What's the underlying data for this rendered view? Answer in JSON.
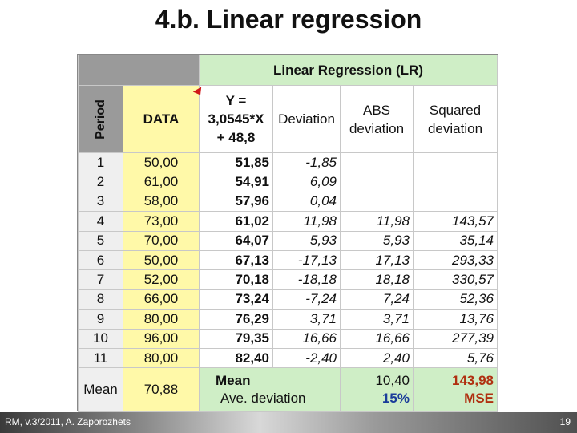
{
  "slide": {
    "title": "4.b. Linear regression",
    "footer_left": "RM, v.3/2011, A. Zaporozhets",
    "page_number": "19"
  },
  "table": {
    "section_header": "Linear Regression (LR)",
    "headers": {
      "period": "Period",
      "data": "DATA",
      "forecast_line1": "Y =",
      "forecast_line2": "3,0545*X",
      "forecast_line3": "+ 48,8",
      "deviation": "Deviation",
      "abs_line1": "ABS",
      "abs_line2": "deviation",
      "sq_line1": "Squared",
      "sq_line2": "deviation"
    },
    "rows": [
      {
        "period": "1",
        "data": "50,00",
        "forecast": "51,85",
        "deviation": "-1,85",
        "abs": "",
        "squared": ""
      },
      {
        "period": "2",
        "data": "61,00",
        "forecast": "54,91",
        "deviation": "6,09",
        "abs": "",
        "squared": ""
      },
      {
        "period": "3",
        "data": "58,00",
        "forecast": "57,96",
        "deviation": "0,04",
        "abs": "",
        "squared": ""
      },
      {
        "period": "4",
        "data": "73,00",
        "forecast": "61,02",
        "deviation": "11,98",
        "abs": "11,98",
        "squared": "143,57"
      },
      {
        "period": "5",
        "data": "70,00",
        "forecast": "64,07",
        "deviation": "5,93",
        "abs": "5,93",
        "squared": "35,14"
      },
      {
        "period": "6",
        "data": "50,00",
        "forecast": "67,13",
        "deviation": "-17,13",
        "abs": "17,13",
        "squared": "293,33"
      },
      {
        "period": "7",
        "data": "52,00",
        "forecast": "70,18",
        "deviation": "-18,18",
        "abs": "18,18",
        "squared": "330,57"
      },
      {
        "period": "8",
        "data": "66,00",
        "forecast": "73,24",
        "deviation": "-7,24",
        "abs": "7,24",
        "squared": "52,36"
      },
      {
        "period": "9",
        "data": "80,00",
        "forecast": "76,29",
        "deviation": "3,71",
        "abs": "3,71",
        "squared": "13,76"
      },
      {
        "period": "10",
        "data": "96,00",
        "forecast": "79,35",
        "deviation": "16,66",
        "abs": "16,66",
        "squared": "277,39"
      },
      {
        "period": "11",
        "data": "80,00",
        "forecast": "82,40",
        "deviation": "-2,40",
        "abs": "2,40",
        "squared": "5,76"
      }
    ],
    "summary": {
      "label": "Mean",
      "data_mean": "70,88",
      "mean_label": "Mean",
      "ave_deviation_label": "Ave. deviation",
      "abs_mean": "10,40",
      "ave_deviation_pct": "15%",
      "mse_value": "143,98",
      "mse_label": "MSE"
    }
  }
}
